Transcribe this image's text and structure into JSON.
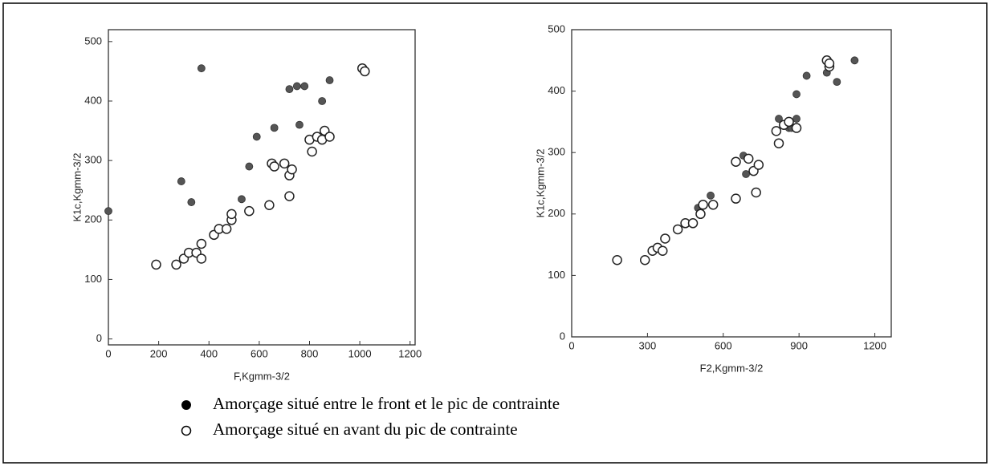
{
  "chart_data": [
    {
      "type": "scatter",
      "xlabel": "F,Kgmm-3/2",
      "ylabel": "K1c,Kgmm-3/2",
      "xlim": [
        0,
        1220
      ],
      "ylim": [
        -10,
        520
      ],
      "xticks": [
        0,
        200,
        400,
        600,
        800,
        1000,
        1200
      ],
      "yticks": [
        0,
        100,
        200,
        300,
        400,
        500
      ],
      "series": [
        {
          "color": "#555555",
          "marker": "filled",
          "x": [
            0,
            290,
            330,
            370,
            530,
            560,
            590,
            660,
            720,
            750,
            780,
            760,
            850,
            880
          ],
          "values": [
            215,
            265,
            230,
            455,
            235,
            290,
            340,
            355,
            420,
            425,
            425,
            360,
            400,
            435
          ]
        },
        {
          "color": "#222222",
          "marker": "open",
          "x": [
            190,
            270,
            300,
            320,
            350,
            370,
            370,
            420,
            440,
            470,
            490,
            490,
            560,
            640,
            650,
            660,
            700,
            720,
            730,
            720,
            800,
            810,
            830,
            850,
            860,
            880,
            1010,
            1020
          ],
          "values": [
            125,
            125,
            135,
            145,
            145,
            135,
            160,
            175,
            185,
            185,
            200,
            210,
            215,
            225,
            295,
            290,
            295,
            275,
            285,
            240,
            335,
            315,
            340,
            335,
            350,
            340,
            455,
            450
          ]
        }
      ]
    },
    {
      "type": "scatter",
      "xlabel": "F2,Kgmm-3/2",
      "ylabel": "K1c,Kgmm-3/2",
      "xlim": [
        0,
        1265
      ],
      "ylim": [
        0,
        500
      ],
      "xticks": [
        0,
        300,
        600,
        900,
        1200
      ],
      "yticks": [
        0,
        100,
        200,
        300,
        400,
        500
      ],
      "series": [
        {
          "color": "#555555",
          "marker": "filled",
          "x": [
            500,
            550,
            680,
            690,
            820,
            860,
            870,
            890,
            890,
            930,
            1010,
            1050,
            1120
          ],
          "values": [
            210,
            230,
            295,
            265,
            355,
            340,
            340,
            355,
            395,
            425,
            430,
            415,
            450
          ]
        },
        {
          "color": "#222222",
          "marker": "open",
          "x": [
            180,
            290,
            320,
            340,
            360,
            370,
            420,
            450,
            480,
            510,
            520,
            560,
            650,
            650,
            700,
            720,
            740,
            730,
            810,
            820,
            840,
            860,
            890,
            1010,
            1020,
            1020
          ],
          "values": [
            125,
            125,
            140,
            145,
            140,
            160,
            175,
            185,
            185,
            200,
            215,
            215,
            225,
            285,
            290,
            270,
            280,
            235,
            335,
            315,
            345,
            350,
            340,
            450,
            440,
            445
          ]
        }
      ]
    }
  ],
  "legend": {
    "items": [
      "Amorçage situé entre le front et le pic de contrainte",
      "Amorçage situé en avant du pic de contrainte"
    ]
  }
}
